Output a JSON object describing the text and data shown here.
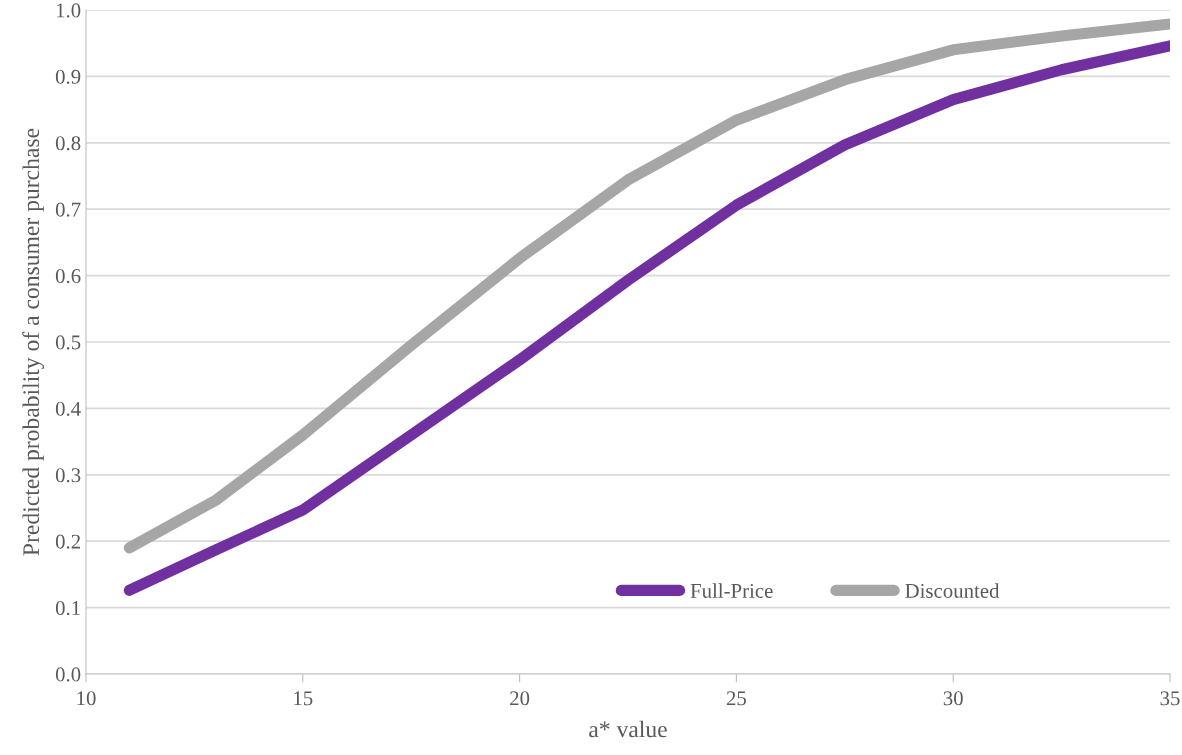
{
  "chart_data": {
    "type": "line",
    "xlabel": "a* value",
    "ylabel": "Predicted probability of a consumer purchase",
    "x": [
      11,
      13,
      15,
      17.5,
      20,
      22.5,
      25,
      27.5,
      30,
      32.5,
      35
    ],
    "series": [
      {
        "name": "Full-Price",
        "color": "#7030a0",
        "values": [
          0.126,
          0.187,
          0.247,
          0.36,
          0.473,
          0.593,
          0.706,
          0.797,
          0.865,
          0.91,
          0.946
        ]
      },
      {
        "name": "Discounted",
        "color": "#a6a6a6",
        "values": [
          0.19,
          0.262,
          0.36,
          0.495,
          0.626,
          0.744,
          0.834,
          0.895,
          0.94,
          0.961,
          0.979
        ]
      }
    ],
    "xlim": [
      10,
      35
    ],
    "xticks": [
      10,
      15,
      20,
      25,
      30,
      35
    ],
    "ylim": [
      0,
      1
    ],
    "yticks": [
      {
        "value": 0,
        "label": "0.0"
      },
      {
        "value": 0.1,
        "label": "0.1"
      },
      {
        "value": 0.2,
        "label": "0.2"
      },
      {
        "value": 0.3,
        "label": "0.3"
      },
      {
        "value": 0.4,
        "label": "0.4"
      },
      {
        "value": 0.5,
        "label": "0.5"
      },
      {
        "value": 0.6,
        "label": "0.6"
      },
      {
        "value": 0.7,
        "label": "0.7"
      },
      {
        "value": 0.8,
        "label": "0.8"
      },
      {
        "value": 0.9,
        "label": "0.9"
      },
      {
        "value": 1,
        "label": "1.0"
      }
    ],
    "grid": "y",
    "legend": "bottom right",
    "marker": "none",
    "line_style": "solid"
  }
}
